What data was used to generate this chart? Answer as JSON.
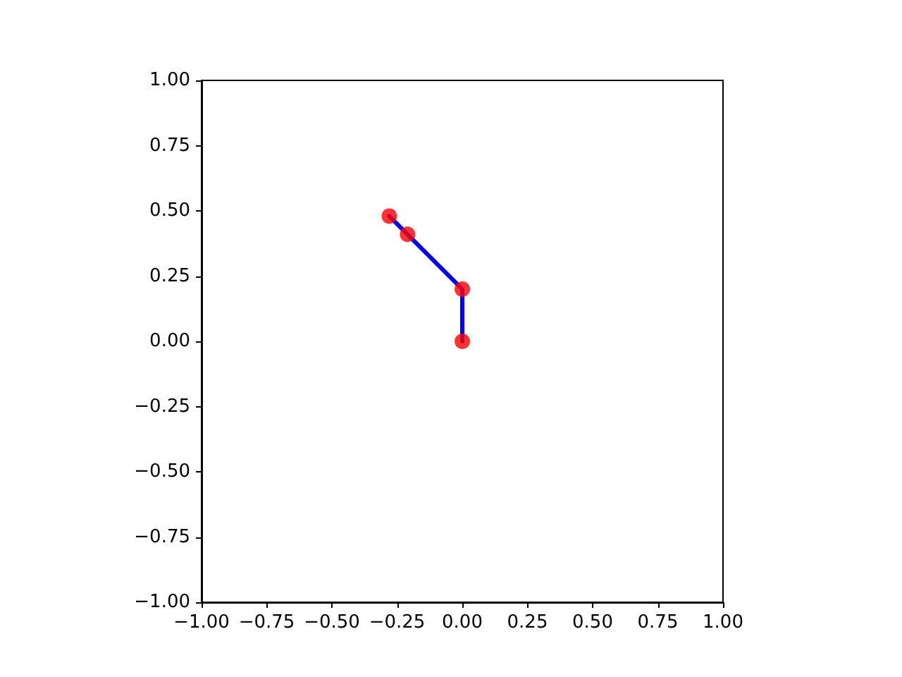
{
  "chart_data": {
    "type": "line",
    "x": [
      0,
      0,
      -0.21,
      -0.28
    ],
    "series": [
      {
        "color": "#0000ff",
        "marker": "none",
        "values": [
          0,
          0.2,
          0.41,
          0.48
        ]
      },
      {
        "type": "scatter",
        "color": "#ff0000",
        "marker": "circle",
        "values": [
          0,
          0.2,
          0.41,
          0.48
        ]
      }
    ],
    "xlim": [
      -1,
      1
    ],
    "ylim": [
      -1,
      1
    ],
    "xticks": [
      {
        "value": -1,
        "label": "−1.00"
      },
      {
        "value": -0.75,
        "label": "−0.75"
      },
      {
        "value": -0.5,
        "label": "−0.50"
      },
      {
        "value": -0.25,
        "label": "−0.25"
      },
      {
        "value": 0,
        "label": "0.00"
      },
      {
        "value": 0.25,
        "label": "0.25"
      },
      {
        "value": 0.5,
        "label": "0.50"
      },
      {
        "value": 0.75,
        "label": "0.75"
      },
      {
        "value": 1,
        "label": "1.00"
      }
    ],
    "yticks": [
      {
        "value": -1,
        "label": "−1.00"
      },
      {
        "value": -0.75,
        "label": "−0.75"
      },
      {
        "value": -0.5,
        "label": "−0.50"
      },
      {
        "value": -0.25,
        "label": "−0.25"
      },
      {
        "value": 0,
        "label": "0.00"
      },
      {
        "value": 0.25,
        "label": "0.25"
      },
      {
        "value": 0.5,
        "label": "0.50"
      },
      {
        "value": 0.75,
        "label": "0.75"
      },
      {
        "value": 1,
        "label": "1.00"
      }
    ],
    "grid": false,
    "line_style": "solid"
  }
}
